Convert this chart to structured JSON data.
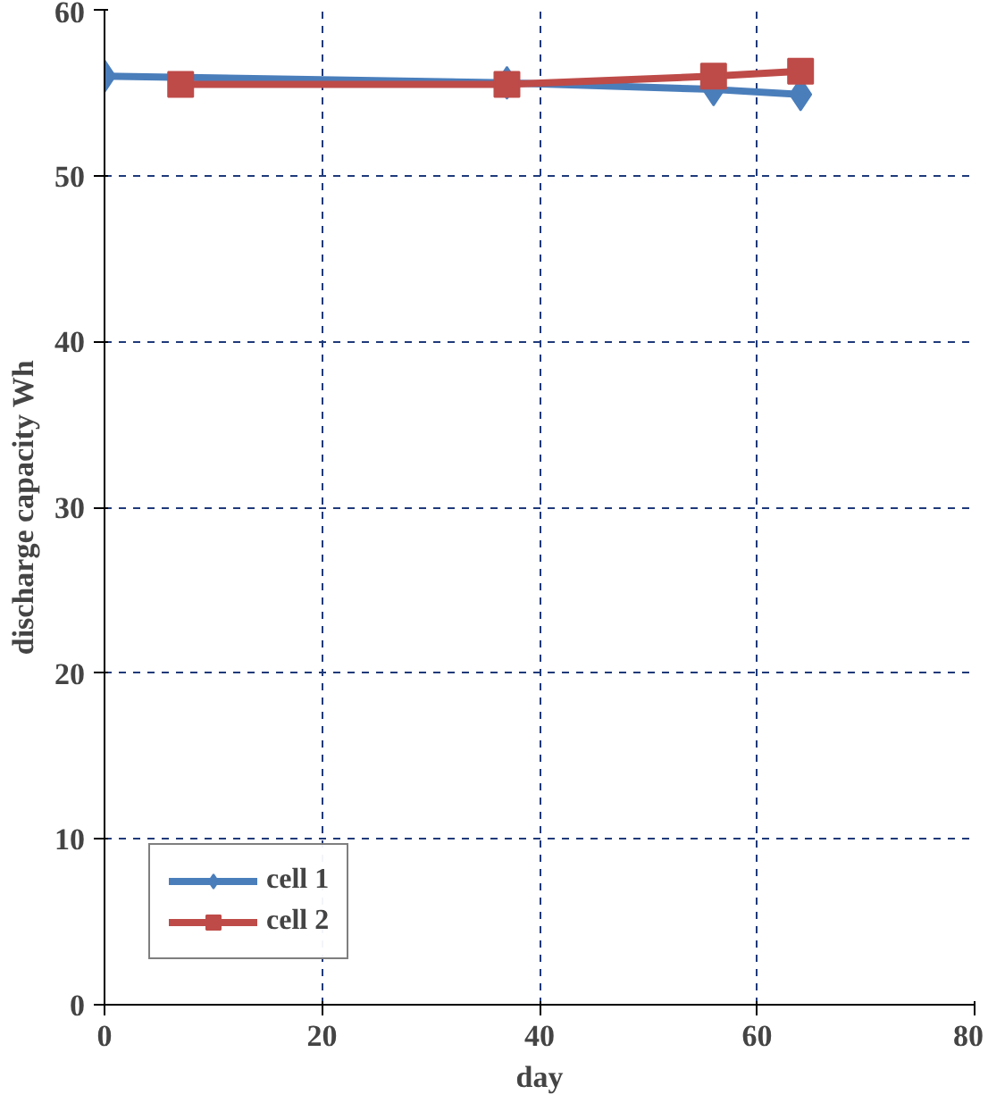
{
  "chart_data": {
    "type": "line",
    "xlabel": "day",
    "ylabel": "discharge capacity Wh",
    "xlim": [
      0,
      80
    ],
    "xticks": [
      0,
      20,
      40,
      60,
      80
    ],
    "ylim": [
      0,
      60
    ],
    "yticks": [
      0,
      10,
      20,
      30,
      40,
      50,
      60
    ],
    "grid": true,
    "legend": "bottom left",
    "series": [
      {
        "name": "cell 1",
        "color": "#4a7ebb",
        "marker": "diamond",
        "x": [
          0,
          37,
          56,
          64
        ],
        "values": [
          56,
          55.6,
          55.2,
          54.9
        ]
      },
      {
        "name": "cell 2",
        "color": "#be4b48",
        "marker": "square",
        "x": [
          7,
          37,
          56,
          64
        ],
        "values": [
          55.5,
          55.5,
          56,
          56.3
        ]
      }
    ]
  }
}
